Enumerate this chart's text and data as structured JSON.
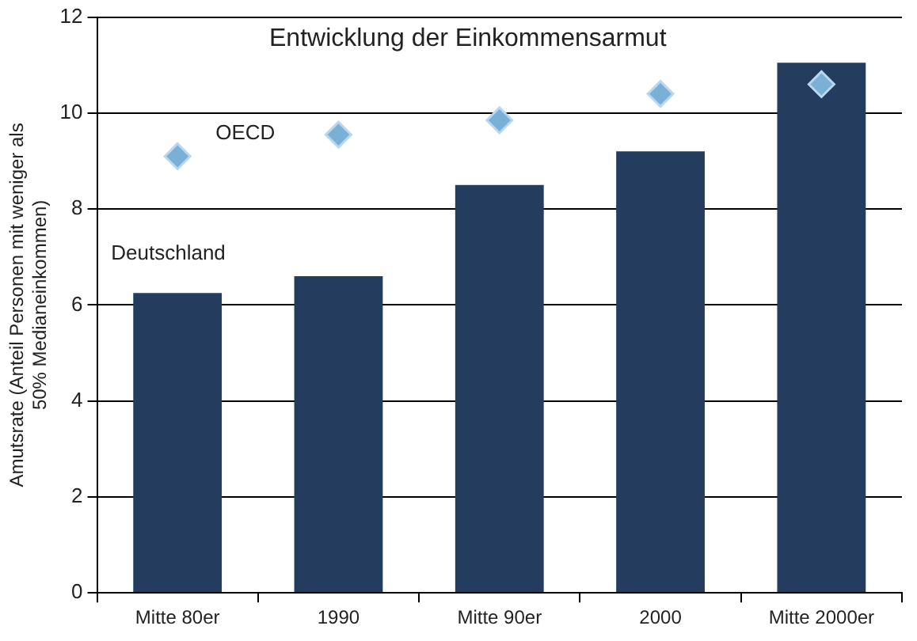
{
  "chart_data": {
    "type": "bar",
    "title": "Entwicklung der Einkommensarmut",
    "ylabel": "Amutsrate (Anteil Personen mit weniger als\n50% Medianeinkommen)",
    "categories": [
      "Mitte 80er",
      "1990",
      "Mitte 90er",
      "2000",
      "Mitte 2000er"
    ],
    "series": [
      {
        "name": "Deutschland",
        "color": "#243d5f",
        "values": [
          6.25,
          6.6,
          8.5,
          9.2,
          11.05
        ]
      },
      {
        "name": "OECD",
        "type": "scatter",
        "color": "#7aafd6",
        "marker": "diamond",
        "values": [
          9.1,
          9.55,
          9.85,
          10.4,
          10.6
        ]
      }
    ],
    "ylim": [
      0,
      12
    ],
    "yticks": [
      0,
      2,
      4,
      6,
      8,
      10,
      12
    ],
    "grid": "y",
    "legend": false
  }
}
